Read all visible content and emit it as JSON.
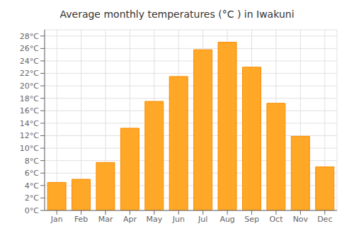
{
  "chart_data": {
    "type": "bar",
    "title": "Average monthly temperatures (°C ) in Iwakuni",
    "categories": [
      "Jan",
      "Feb",
      "Mar",
      "Apr",
      "May",
      "Jun",
      "Jul",
      "Aug",
      "Sep",
      "Oct",
      "Nov",
      "Dec"
    ],
    "values": [
      4.5,
      5.0,
      7.7,
      13.2,
      17.5,
      21.5,
      25.8,
      27.0,
      23.0,
      17.2,
      11.9,
      7.0
    ],
    "color": "#FFA726",
    "ylim": [
      0,
      29
    ],
    "yticks": [
      {
        "value": 0,
        "label": "0°C"
      },
      {
        "value": 2,
        "label": "2°C"
      },
      {
        "value": 4,
        "label": "4°C"
      },
      {
        "value": 6,
        "label": "6°C"
      },
      {
        "value": 8,
        "label": "8°C"
      },
      {
        "value": 10,
        "label": "10°C"
      },
      {
        "value": 12,
        "label": "12°C"
      },
      {
        "value": 14,
        "label": "14°C"
      },
      {
        "value": 16,
        "label": "16°C"
      },
      {
        "value": 18,
        "label": "18°C"
      },
      {
        "value": 20,
        "label": "20°C"
      },
      {
        "value": 22,
        "label": "22°C"
      },
      {
        "value": 24,
        "label": "24°C"
      },
      {
        "value": 26,
        "label": "26°C"
      },
      {
        "value": 28,
        "label": "28°C"
      }
    ],
    "grid": true
  }
}
